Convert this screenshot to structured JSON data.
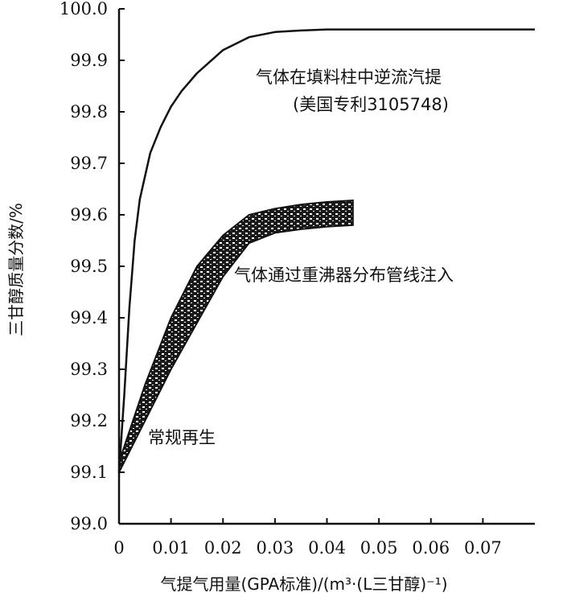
{
  "chart_data": {
    "type": "line",
    "title": "",
    "xlabel": "气提气用量(GPA标准)/(m³·(L三甘醇)⁻¹)",
    "ylabel": "三甘醇质量分数/%",
    "xlim": [
      0,
      0.08
    ],
    "ylim": [
      99.0,
      100.0
    ],
    "x_ticks": [
      "0",
      "0.01",
      "0.02",
      "0.03",
      "0.04",
      "0.05",
      "0.06",
      "0.07"
    ],
    "y_ticks": [
      "99.0",
      "99.1",
      "99.2",
      "99.3",
      "99.4",
      "99.5",
      "99.6",
      "99.7",
      "99.8",
      "99.9",
      "100.0"
    ],
    "grid": false,
    "series": [
      {
        "kind": "line",
        "x": [
          0,
          0.001,
          0.002,
          0.003,
          0.004,
          0.006,
          0.008,
          0.01,
          0.012,
          0.015,
          0.02,
          0.025,
          0.03,
          0.035,
          0.04,
          0.05,
          0.06,
          0.07,
          0.08
        ],
        "y": [
          99.1,
          99.25,
          99.42,
          99.55,
          99.63,
          99.72,
          99.77,
          99.81,
          99.84,
          99.875,
          99.92,
          99.945,
          99.955,
          99.958,
          99.96,
          99.96,
          99.96,
          99.96,
          99.96
        ]
      },
      {
        "kind": "band",
        "x": [
          0,
          0.005,
          0.01,
          0.015,
          0.02,
          0.025,
          0.03,
          0.035,
          0.04,
          0.045
        ],
        "y_upper": [
          99.12,
          99.27,
          99.4,
          99.5,
          99.56,
          99.6,
          99.612,
          99.62,
          99.625,
          99.628
        ],
        "y_lower": [
          99.1,
          99.2,
          99.3,
          99.39,
          99.48,
          99.545,
          99.565,
          99.572,
          99.577,
          99.58
        ]
      }
    ],
    "annotations": [
      {
        "text": "气体在填料柱中逆流汽提"
      },
      {
        "text": "(美国专利3105748)"
      },
      {
        "text": "气体通过重沸器分布管线注入"
      },
      {
        "text": "常规再生"
      }
    ]
  },
  "colors": {
    "line": "#111111",
    "band_fill": "#222222",
    "background": "#ffffff"
  }
}
